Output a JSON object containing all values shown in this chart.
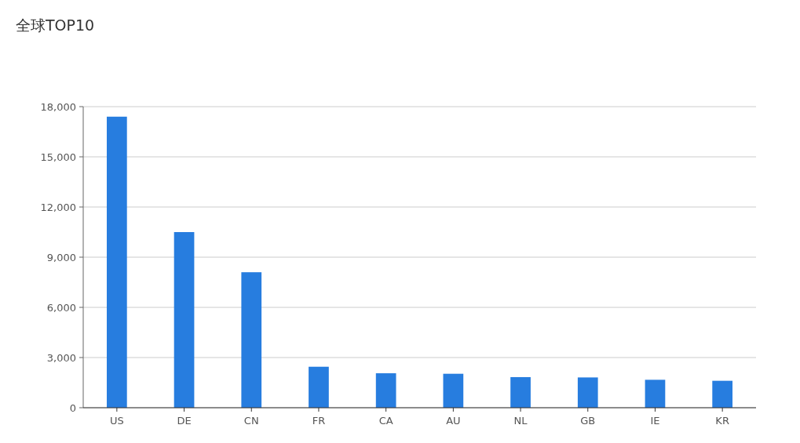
{
  "chart_data": {
    "type": "bar",
    "title": "全球TOP10",
    "categories": [
      "US",
      "DE",
      "CN",
      "FR",
      "CA",
      "AU",
      "NL",
      "GB",
      "IE",
      "KR"
    ],
    "values": [
      17400,
      10500,
      8100,
      2450,
      2060,
      2030,
      1830,
      1810,
      1670,
      1610
    ],
    "color": "#277ddf",
    "ylim": [
      0,
      18000
    ],
    "yticks": [
      {
        "value": 0,
        "label": "0"
      },
      {
        "value": 3000,
        "label": "3,000"
      },
      {
        "value": 6000,
        "label": "6,000"
      },
      {
        "value": 9000,
        "label": "9,000"
      },
      {
        "value": 12000,
        "label": "12,000"
      },
      {
        "value": 15000,
        "label": "15,000"
      },
      {
        "value": 18000,
        "label": "18,000"
      }
    ],
    "grid": "y"
  }
}
